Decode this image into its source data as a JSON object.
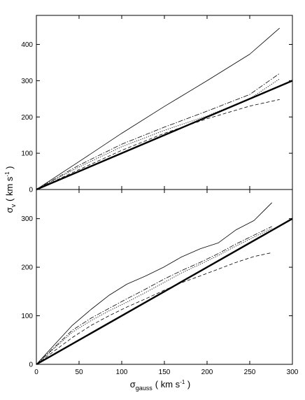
{
  "chart_data": [
    {
      "type": "line",
      "panel": "top",
      "xlim": [
        0,
        300
      ],
      "ylim": [
        0,
        480
      ],
      "xticks": [
        0,
        50,
        100,
        150,
        200,
        250,
        300
      ],
      "yticks": [
        0,
        100,
        200,
        300,
        400
      ],
      "ytick_labels": [
        "0",
        "100",
        "200",
        "300",
        "400"
      ],
      "series": [
        {
          "style": "thick-solid",
          "x": [
            0,
            300
          ],
          "y": [
            0,
            300
          ]
        },
        {
          "style": "thin-solid",
          "x": [
            0,
            50,
            100,
            150,
            200,
            250,
            285
          ],
          "y": [
            0,
            77,
            155,
            229,
            300,
            373,
            445
          ]
        },
        {
          "style": "dash-dot",
          "x": [
            0,
            50,
            100,
            150,
            200,
            250,
            285
          ],
          "y": [
            0,
            67,
            125,
            172,
            216,
            262,
            320
          ]
        },
        {
          "style": "dotted",
          "x": [
            0,
            50,
            100,
            150,
            200,
            250,
            285
          ],
          "y": [
            0,
            62,
            118,
            163,
            203,
            250,
            305
          ]
        },
        {
          "style": "dashed",
          "x": [
            0,
            50,
            100,
            150,
            200,
            250,
            285
          ],
          "y": [
            0,
            55,
            108,
            155,
            195,
            230,
            248
          ]
        }
      ]
    },
    {
      "type": "line",
      "panel": "bottom",
      "xlim": [
        0,
        300
      ],
      "ylim": [
        0,
        360
      ],
      "xticks": [
        0,
        50,
        100,
        150,
        200,
        250,
        300
      ],
      "xtick_labels": [
        "0",
        "50",
        "100",
        "150",
        "200",
        "250",
        "300"
      ],
      "yticks": [
        0,
        100,
        200,
        300
      ],
      "ytick_labels": [
        "0",
        "100",
        "200",
        "300"
      ],
      "series": [
        {
          "style": "thick-solid",
          "x": [
            0,
            300
          ],
          "y": [
            0,
            300
          ]
        },
        {
          "style": "thin-solid",
          "x": [
            0,
            42,
            64,
            85,
            106,
            128,
            149,
            170,
            192,
            213,
            234,
            255,
            276
          ],
          "y": [
            0,
            80,
            113,
            142,
            165,
            182,
            200,
            221,
            238,
            250,
            277,
            296,
            333
          ]
        },
        {
          "style": "dash-dot",
          "x": [
            0,
            42,
            64,
            85,
            106,
            128,
            149,
            170,
            192,
            213,
            234,
            255,
            276
          ],
          "y": [
            0,
            70,
            95,
            115,
            135,
            155,
            175,
            193,
            210,
            228,
            248,
            266,
            284
          ]
        },
        {
          "style": "dotted",
          "x": [
            0,
            42,
            64,
            85,
            106,
            128,
            149,
            170,
            192,
            213,
            234,
            255,
            276
          ],
          "y": [
            0,
            66,
            90,
            110,
            128,
            148,
            168,
            188,
            206,
            224,
            244,
            262,
            280
          ]
        },
        {
          "style": "dashed",
          "x": [
            0,
            42,
            64,
            85,
            106,
            128,
            149,
            170,
            192,
            213,
            234,
            255,
            276
          ],
          "y": [
            0,
            55,
            80,
            100,
            118,
            135,
            152,
            168,
            182,
            196,
            210,
            222,
            230
          ]
        }
      ]
    }
  ],
  "axis": {
    "ylabel_main": "σ",
    "ylabel_sub": "v",
    "ylabel_unit_pre": "( km s",
    "ylabel_unit_exp": "-1",
    "ylabel_unit_post": " )",
    "xlabel_main": "σ",
    "xlabel_sub": "gauss",
    "xlabel_unit_pre": "( km s",
    "xlabel_unit_exp": "-1",
    "xlabel_unit_post": " )"
  }
}
